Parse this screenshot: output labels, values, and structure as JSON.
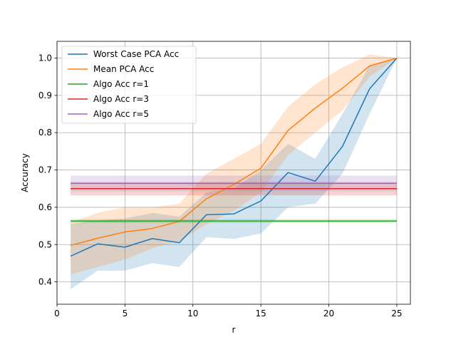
{
  "chart_data": {
    "type": "line",
    "title": "",
    "xlabel": "r",
    "ylabel": "Accuracy",
    "xlim": [
      0,
      26
    ],
    "ylim": [
      0.34,
      1.045
    ],
    "grid": true,
    "legend_position": "top-left",
    "xticks": [
      0,
      5,
      10,
      15,
      20,
      25
    ],
    "yticks": [
      0.4,
      0.5,
      0.6,
      0.7,
      0.8,
      0.9,
      1.0
    ],
    "x": [
      1,
      3,
      5,
      7,
      9,
      11,
      13,
      15,
      17,
      19,
      21,
      23,
      25
    ],
    "series": [
      {
        "name": "Worst Case PCA Acc",
        "color": "#1f77b4",
        "values": [
          0.469,
          0.502,
          0.493,
          0.516,
          0.505,
          0.58,
          0.582,
          0.617,
          0.693,
          0.67,
          0.763,
          0.918,
          1.0
        ],
        "band_upper": [
          0.555,
          0.565,
          0.57,
          0.585,
          0.575,
          0.64,
          0.65,
          0.7,
          0.77,
          0.73,
          0.85,
          0.98,
          1.0
        ],
        "band_lower": [
          0.38,
          0.43,
          0.43,
          0.45,
          0.44,
          0.52,
          0.515,
          0.53,
          0.6,
          0.61,
          0.69,
          0.85,
          1.0
        ]
      },
      {
        "name": "Mean PCA Acc",
        "color": "#ff7f0e",
        "values": [
          0.498,
          0.517,
          0.534,
          0.543,
          0.562,
          0.623,
          0.661,
          0.705,
          0.806,
          0.866,
          0.919,
          0.979,
          1.0
        ],
        "band_upper": [
          0.56,
          0.585,
          0.6,
          0.6,
          0.61,
          0.69,
          0.73,
          0.77,
          0.87,
          0.93,
          0.975,
          1.01,
          1.0
        ],
        "band_lower": [
          0.42,
          0.44,
          0.46,
          0.49,
          0.51,
          0.555,
          0.59,
          0.64,
          0.74,
          0.8,
          0.86,
          0.95,
          1.0
        ]
      },
      {
        "name": "Algo Acc r=1",
        "color": "#2ca02c",
        "values": [
          0.563,
          0.563,
          0.563,
          0.563,
          0.563,
          0.563,
          0.563,
          0.563,
          0.563,
          0.563,
          0.563,
          0.563,
          0.563
        ],
        "band_upper": [
          0.568,
          0.568,
          0.568,
          0.568,
          0.568,
          0.568,
          0.568,
          0.568,
          0.568,
          0.568,
          0.568,
          0.568,
          0.568
        ],
        "band_lower": [
          0.558,
          0.558,
          0.558,
          0.558,
          0.558,
          0.558,
          0.558,
          0.558,
          0.558,
          0.558,
          0.558,
          0.558,
          0.558
        ]
      },
      {
        "name": "Algo Acc r=3",
        "color": "#d62728",
        "values": [
          0.65,
          0.65,
          0.65,
          0.65,
          0.65,
          0.65,
          0.65,
          0.65,
          0.65,
          0.65,
          0.65,
          0.65,
          0.65
        ],
        "band_upper": [
          0.668,
          0.668,
          0.668,
          0.668,
          0.668,
          0.668,
          0.668,
          0.668,
          0.668,
          0.668,
          0.668,
          0.668,
          0.668
        ],
        "band_lower": [
          0.632,
          0.632,
          0.632,
          0.632,
          0.632,
          0.632,
          0.632,
          0.632,
          0.632,
          0.632,
          0.632,
          0.632,
          0.632
        ]
      },
      {
        "name": "Algo Acc r=5",
        "color": "#9467bd",
        "values": [
          0.664,
          0.664,
          0.664,
          0.664,
          0.664,
          0.664,
          0.664,
          0.664,
          0.664,
          0.664,
          0.664,
          0.664,
          0.664
        ],
        "band_upper": [
          0.685,
          0.685,
          0.685,
          0.685,
          0.685,
          0.685,
          0.685,
          0.685,
          0.685,
          0.685,
          0.685,
          0.685,
          0.685
        ],
        "band_lower": [
          0.643,
          0.643,
          0.643,
          0.643,
          0.643,
          0.643,
          0.643,
          0.643,
          0.643,
          0.643,
          0.643,
          0.643,
          0.643
        ]
      }
    ]
  }
}
